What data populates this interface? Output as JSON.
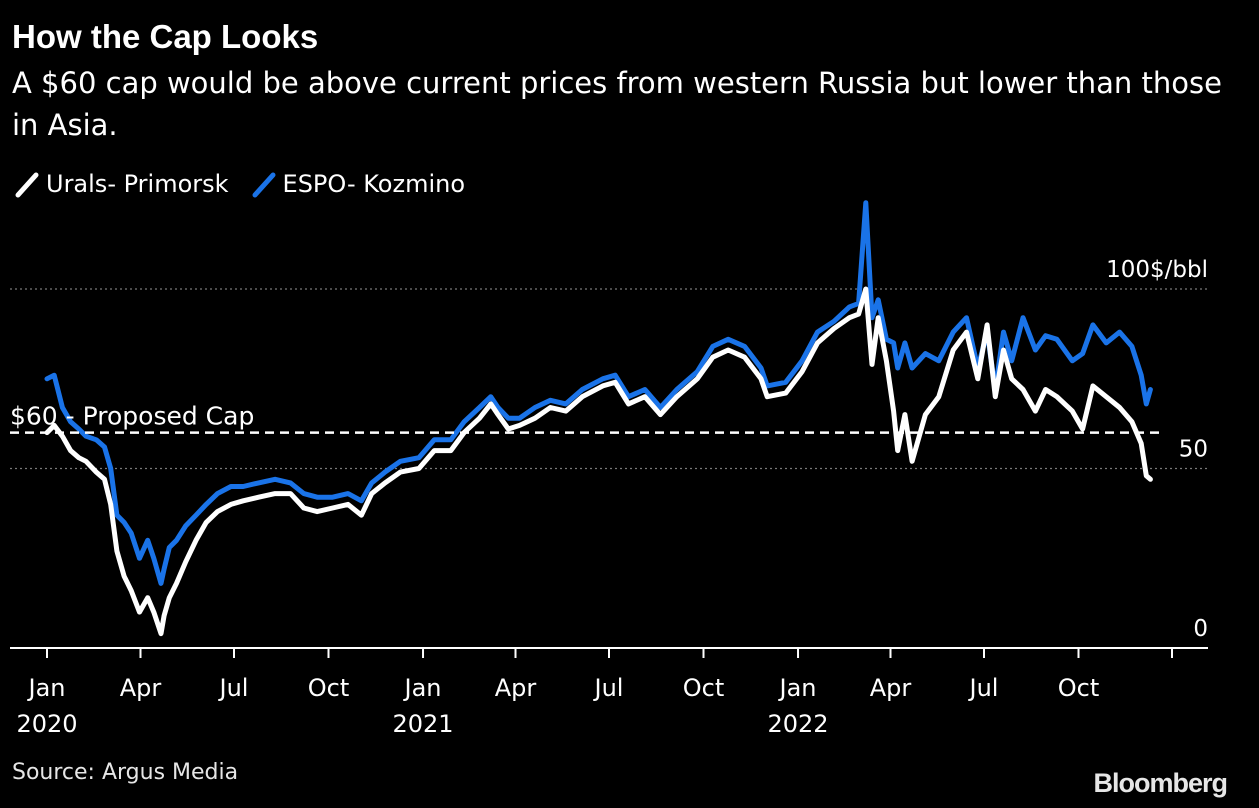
{
  "chart_data": {
    "type": "line",
    "title": "How the Cap Looks",
    "subtitle": "A $60 cap would be above current prices from western Russia but lower than those in Asia.",
    "source": "Source: Argus Media",
    "logo": "Bloomberg",
    "unit_label": "100$/bbl",
    "ylim": [
      0,
      120
    ],
    "yticks": [
      {
        "value": 0,
        "label": "0"
      },
      {
        "value": 50,
        "label": "50"
      },
      {
        "value": 100,
        "label": "100$/bbl"
      }
    ],
    "xlim": [
      "2020-01-01",
      "2022-12-31"
    ],
    "xticks": [
      {
        "date": "2020-01-01",
        "label": "Jan",
        "sublabel": "2020"
      },
      {
        "date": "2020-04-01",
        "label": "Apr",
        "sublabel": ""
      },
      {
        "date": "2020-07-01",
        "label": "Jul",
        "sublabel": ""
      },
      {
        "date": "2020-10-01",
        "label": "Oct",
        "sublabel": ""
      },
      {
        "date": "2021-01-01",
        "label": "Jan",
        "sublabel": "2021"
      },
      {
        "date": "2021-04-01",
        "label": "Apr",
        "sublabel": ""
      },
      {
        "date": "2021-07-01",
        "label": "Jul",
        "sublabel": ""
      },
      {
        "date": "2021-10-01",
        "label": "Oct",
        "sublabel": ""
      },
      {
        "date": "2022-01-01",
        "label": "Jan",
        "sublabel": "2022"
      },
      {
        "date": "2022-04-01",
        "label": "Apr",
        "sublabel": ""
      },
      {
        "date": "2022-07-01",
        "label": "Jul",
        "sublabel": ""
      },
      {
        "date": "2022-10-01",
        "label": "Oct",
        "sublabel": ""
      },
      {
        "date": "2022-12-31",
        "label": "",
        "sublabel": ""
      }
    ],
    "reference_line": {
      "value": 60,
      "label": "$60 - Proposed Cap",
      "style": "dashed",
      "color": "#ffffff"
    },
    "grid": true,
    "legend_position": "top-left",
    "series": [
      {
        "name": "Urals- Primorsk",
        "color": "#ffffff",
        "points": [
          [
            "2020-01-01",
            60
          ],
          [
            "2020-01-08",
            62
          ],
          [
            "2020-01-16",
            59
          ],
          [
            "2020-01-24",
            55
          ],
          [
            "2020-02-01",
            53
          ],
          [
            "2020-02-08",
            52
          ],
          [
            "2020-02-18",
            49
          ],
          [
            "2020-02-26",
            47
          ],
          [
            "2020-03-03",
            40
          ],
          [
            "2020-03-09",
            27
          ],
          [
            "2020-03-16",
            20
          ],
          [
            "2020-03-23",
            16
          ],
          [
            "2020-03-31",
            10
          ],
          [
            "2020-04-08",
            14
          ],
          [
            "2020-04-14",
            10
          ],
          [
            "2020-04-21",
            4
          ],
          [
            "2020-04-24",
            9
          ],
          [
            "2020-04-29",
            14
          ],
          [
            "2020-05-06",
            18
          ],
          [
            "2020-05-15",
            24
          ],
          [
            "2020-05-25",
            30
          ],
          [
            "2020-06-04",
            35
          ],
          [
            "2020-06-15",
            38
          ],
          [
            "2020-06-28",
            40
          ],
          [
            "2020-07-10",
            41
          ],
          [
            "2020-07-25",
            42
          ],
          [
            "2020-08-10",
            43
          ],
          [
            "2020-08-25",
            43
          ],
          [
            "2020-09-07",
            39
          ],
          [
            "2020-09-20",
            38
          ],
          [
            "2020-10-05",
            39
          ],
          [
            "2020-10-20",
            40
          ],
          [
            "2020-11-02",
            37
          ],
          [
            "2020-11-12",
            43
          ],
          [
            "2020-11-25",
            46
          ],
          [
            "2020-12-10",
            49
          ],
          [
            "2020-12-28",
            50
          ],
          [
            "2021-01-12",
            55
          ],
          [
            "2021-01-28",
            55
          ],
          [
            "2021-02-10",
            60
          ],
          [
            "2021-02-25",
            64
          ],
          [
            "2021-03-08",
            68
          ],
          [
            "2021-03-15",
            65
          ],
          [
            "2021-03-25",
            61
          ],
          [
            "2021-04-05",
            62
          ],
          [
            "2021-04-20",
            64
          ],
          [
            "2021-05-05",
            67
          ],
          [
            "2021-05-20",
            66
          ],
          [
            "2021-06-05",
            70
          ],
          [
            "2021-06-25",
            73
          ],
          [
            "2021-07-07",
            74
          ],
          [
            "2021-07-20",
            68
          ],
          [
            "2021-08-05",
            70
          ],
          [
            "2021-08-20",
            65
          ],
          [
            "2021-09-05",
            70
          ],
          [
            "2021-09-25",
            75
          ],
          [
            "2021-10-10",
            81
          ],
          [
            "2021-10-25",
            83
          ],
          [
            "2021-11-10",
            81
          ],
          [
            "2021-11-26",
            75
          ],
          [
            "2021-12-02",
            70
          ],
          [
            "2021-12-20",
            71
          ],
          [
            "2022-01-05",
            77
          ],
          [
            "2022-01-20",
            85
          ],
          [
            "2022-02-05",
            89
          ],
          [
            "2022-02-20",
            92
          ],
          [
            "2022-03-01",
            93
          ],
          [
            "2022-03-08",
            100
          ],
          [
            "2022-03-14",
            79
          ],
          [
            "2022-03-20",
            92
          ],
          [
            "2022-03-28",
            80
          ],
          [
            "2022-04-04",
            66
          ],
          [
            "2022-04-08",
            55
          ],
          [
            "2022-04-15",
            65
          ],
          [
            "2022-04-22",
            52
          ],
          [
            "2022-05-05",
            65
          ],
          [
            "2022-05-18",
            70
          ],
          [
            "2022-06-01",
            83
          ],
          [
            "2022-06-14",
            88
          ],
          [
            "2022-06-25",
            75
          ],
          [
            "2022-07-04",
            90
          ],
          [
            "2022-07-12",
            70
          ],
          [
            "2022-07-20",
            83
          ],
          [
            "2022-07-28",
            75
          ],
          [
            "2022-08-08",
            72
          ],
          [
            "2022-08-20",
            66
          ],
          [
            "2022-08-30",
            72
          ],
          [
            "2022-09-10",
            70
          ],
          [
            "2022-09-25",
            66
          ],
          [
            "2022-10-05",
            61
          ],
          [
            "2022-10-15",
            73
          ],
          [
            "2022-10-28",
            70
          ],
          [
            "2022-11-10",
            67
          ],
          [
            "2022-11-22",
            63
          ],
          [
            "2022-12-01",
            57
          ],
          [
            "2022-12-06",
            48
          ],
          [
            "2022-12-10",
            47
          ]
        ]
      },
      {
        "name": "ESPO- Kozmino",
        "color": "#1a73e8",
        "points": [
          [
            "2020-01-01",
            75
          ],
          [
            "2020-01-08",
            76
          ],
          [
            "2020-01-16",
            67
          ],
          [
            "2020-01-24",
            63
          ],
          [
            "2020-02-01",
            61
          ],
          [
            "2020-02-08",
            59
          ],
          [
            "2020-02-18",
            58
          ],
          [
            "2020-02-26",
            56
          ],
          [
            "2020-03-03",
            50
          ],
          [
            "2020-03-09",
            37
          ],
          [
            "2020-03-16",
            35
          ],
          [
            "2020-03-23",
            32
          ],
          [
            "2020-03-31",
            25
          ],
          [
            "2020-04-08",
            30
          ],
          [
            "2020-04-14",
            25
          ],
          [
            "2020-04-21",
            18
          ],
          [
            "2020-04-24",
            22
          ],
          [
            "2020-04-29",
            28
          ],
          [
            "2020-05-06",
            30
          ],
          [
            "2020-05-15",
            34
          ],
          [
            "2020-05-25",
            37
          ],
          [
            "2020-06-04",
            40
          ],
          [
            "2020-06-15",
            43
          ],
          [
            "2020-06-28",
            45
          ],
          [
            "2020-07-10",
            45
          ],
          [
            "2020-07-25",
            46
          ],
          [
            "2020-08-10",
            47
          ],
          [
            "2020-08-25",
            46
          ],
          [
            "2020-09-07",
            43
          ],
          [
            "2020-09-20",
            42
          ],
          [
            "2020-10-05",
            42
          ],
          [
            "2020-10-20",
            43
          ],
          [
            "2020-11-02",
            41
          ],
          [
            "2020-11-12",
            46
          ],
          [
            "2020-11-25",
            49
          ],
          [
            "2020-12-10",
            52
          ],
          [
            "2020-12-28",
            53
          ],
          [
            "2021-01-12",
            58
          ],
          [
            "2021-01-28",
            58
          ],
          [
            "2021-02-10",
            63
          ],
          [
            "2021-02-25",
            67
          ],
          [
            "2021-03-08",
            70
          ],
          [
            "2021-03-15",
            67
          ],
          [
            "2021-03-25",
            64
          ],
          [
            "2021-04-05",
            64
          ],
          [
            "2021-04-20",
            67
          ],
          [
            "2021-05-05",
            69
          ],
          [
            "2021-05-20",
            68
          ],
          [
            "2021-06-05",
            72
          ],
          [
            "2021-06-25",
            75
          ],
          [
            "2021-07-07",
            76
          ],
          [
            "2021-07-20",
            70
          ],
          [
            "2021-08-05",
            72
          ],
          [
            "2021-08-20",
            67
          ],
          [
            "2021-09-05",
            72
          ],
          [
            "2021-09-25",
            77
          ],
          [
            "2021-10-10",
            84
          ],
          [
            "2021-10-25",
            86
          ],
          [
            "2021-11-10",
            84
          ],
          [
            "2021-11-26",
            78
          ],
          [
            "2021-12-02",
            73
          ],
          [
            "2021-12-20",
            74
          ],
          [
            "2022-01-05",
            80
          ],
          [
            "2022-01-20",
            88
          ],
          [
            "2022-02-05",
            91
          ],
          [
            "2022-02-20",
            95
          ],
          [
            "2022-03-01",
            96
          ],
          [
            "2022-03-08",
            124
          ],
          [
            "2022-03-14",
            92
          ],
          [
            "2022-03-20",
            97
          ],
          [
            "2022-03-28",
            86
          ],
          [
            "2022-04-04",
            85
          ],
          [
            "2022-04-08",
            78
          ],
          [
            "2022-04-15",
            85
          ],
          [
            "2022-04-22",
            78
          ],
          [
            "2022-05-05",
            82
          ],
          [
            "2022-05-18",
            80
          ],
          [
            "2022-06-01",
            88
          ],
          [
            "2022-06-14",
            92
          ],
          [
            "2022-06-25",
            78
          ],
          [
            "2022-07-04",
            88
          ],
          [
            "2022-07-12",
            72
          ],
          [
            "2022-07-20",
            88
          ],
          [
            "2022-07-28",
            80
          ],
          [
            "2022-08-08",
            92
          ],
          [
            "2022-08-20",
            83
          ],
          [
            "2022-08-30",
            87
          ],
          [
            "2022-09-10",
            86
          ],
          [
            "2022-09-25",
            80
          ],
          [
            "2022-10-05",
            82
          ],
          [
            "2022-10-15",
            90
          ],
          [
            "2022-10-28",
            85
          ],
          [
            "2022-11-10",
            88
          ],
          [
            "2022-11-22",
            84
          ],
          [
            "2022-12-01",
            76
          ],
          [
            "2022-12-06",
            68
          ],
          [
            "2022-12-10",
            72
          ]
        ]
      }
    ]
  }
}
